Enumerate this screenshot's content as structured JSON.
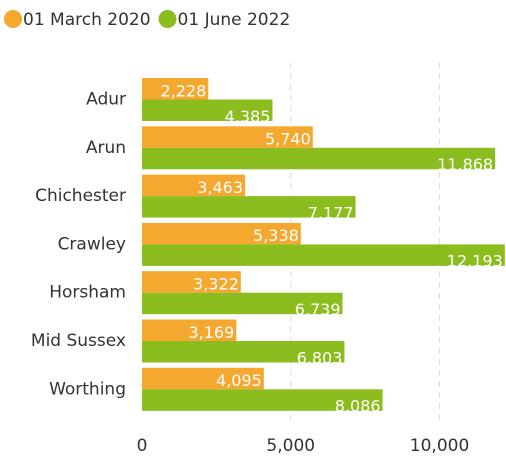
{
  "chart_data": {
    "type": "bar",
    "orientation": "horizontal",
    "categories": [
      "Adur",
      "Arun",
      "Chichester",
      "Crawley",
      "Horsham",
      "Mid Sussex",
      "Worthing"
    ],
    "series": [
      {
        "name": "01 March 2020",
        "color": "#f5a82f",
        "values": [
          2228,
          5740,
          3463,
          5338,
          3322,
          3169,
          4095
        ],
        "value_labels": [
          "2,228",
          "5,740",
          "3,463",
          "5,338",
          "3,322",
          "3,169",
          "4,095"
        ]
      },
      {
        "name": "01 June 2022",
        "color": "#8cbd1e",
        "values": [
          4385,
          11868,
          7177,
          12193,
          6739,
          6803,
          8086
        ],
        "value_labels": [
          "4,385",
          "11,868",
          "7,177",
          "12,193",
          "6,739",
          "6,803",
          "8,086"
        ]
      }
    ],
    "xlim": [
      0,
      12200
    ],
    "xticks": [
      0,
      {
        "value": 5000,
        "label": "5,000"
      },
      {
        "value": 10000,
        "label": "10,000"
      }
    ],
    "grid": true,
    "legend": "top-left"
  }
}
